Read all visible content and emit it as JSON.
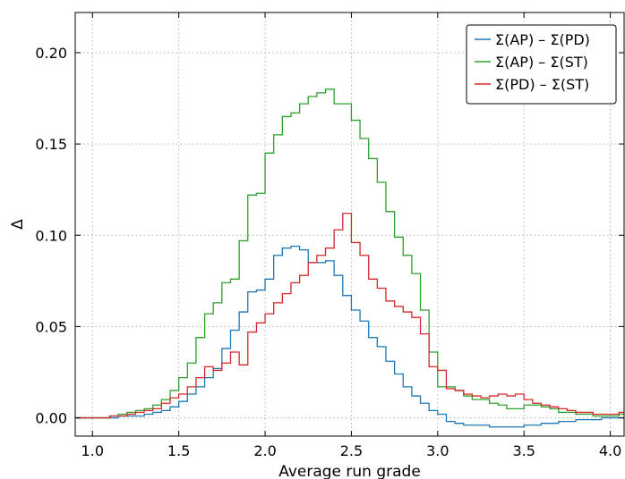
{
  "chart_data": {
    "type": "line",
    "step": true,
    "xlabel": "Average run grade",
    "ylabel": "Δ",
    "xlim": [
      0.9,
      4.08
    ],
    "ylim": [
      -0.01,
      0.222
    ],
    "xticks": [
      1.0,
      1.5,
      2.0,
      2.5,
      3.0,
      3.5,
      4.0
    ],
    "xtick_labels": [
      "1.0",
      "1.5",
      "2.0",
      "2.5",
      "3.0",
      "3.5",
      "4.0"
    ],
    "yticks": [
      0.0,
      0.05,
      0.1,
      0.15,
      0.2
    ],
    "ytick_labels": [
      "0.00",
      "0.05",
      "0.10",
      "0.15",
      "0.20"
    ],
    "grid": true,
    "legend_position": "top-right",
    "bin_width": 0.05,
    "bin_starts": [
      0.9,
      0.95,
      1.0,
      1.05,
      1.1,
      1.15,
      1.2,
      1.25,
      1.3,
      1.35,
      1.4,
      1.45,
      1.5,
      1.55,
      1.6,
      1.65,
      1.7,
      1.75,
      1.8,
      1.85,
      1.9,
      1.95,
      2.0,
      2.05,
      2.1,
      2.15,
      2.2,
      2.25,
      2.3,
      2.35,
      2.4,
      2.45,
      2.5,
      2.55,
      2.6,
      2.65,
      2.7,
      2.75,
      2.8,
      2.85,
      2.9,
      2.95,
      3.0,
      3.05,
      3.1,
      3.15,
      3.2,
      3.25,
      3.3,
      3.35,
      3.4,
      3.45,
      3.5,
      3.55,
      3.6,
      3.65,
      3.7,
      3.75,
      3.8,
      3.85,
      3.9,
      3.95,
      4.0,
      4.05
    ],
    "series": [
      {
        "name": "Σ(AP) – Σ(PD)",
        "color": "#1f77b4",
        "values": [
          0.0,
          0.0,
          0.0,
          0.0,
          0.0,
          0.001,
          0.001,
          0.001,
          0.002,
          0.003,
          0.004,
          0.006,
          0.009,
          0.013,
          0.017,
          0.022,
          0.027,
          0.038,
          0.048,
          0.058,
          0.069,
          0.07,
          0.076,
          0.089,
          0.093,
          0.094,
          0.092,
          0.085,
          0.085,
          0.086,
          0.078,
          0.067,
          0.059,
          0.053,
          0.044,
          0.039,
          0.031,
          0.024,
          0.017,
          0.012,
          0.008,
          0.004,
          0.002,
          -0.002,
          -0.003,
          -0.004,
          -0.004,
          -0.004,
          -0.005,
          -0.005,
          -0.005,
          -0.005,
          -0.004,
          -0.004,
          -0.003,
          -0.003,
          -0.002,
          -0.002,
          -0.001,
          -0.001,
          -0.001,
          0.0,
          0.0,
          0.0
        ]
      },
      {
        "name": "Σ(AP) – Σ(ST)",
        "color": "#2ca02c",
        "values": [
          0.0,
          0.0,
          0.0,
          0.0,
          0.001,
          0.002,
          0.003,
          0.004,
          0.005,
          0.007,
          0.01,
          0.015,
          0.022,
          0.03,
          0.044,
          0.057,
          0.063,
          0.074,
          0.076,
          0.097,
          0.122,
          0.123,
          0.145,
          0.155,
          0.165,
          0.167,
          0.172,
          0.176,
          0.178,
          0.18,
          0.172,
          0.172,
          0.163,
          0.153,
          0.142,
          0.129,
          0.113,
          0.099,
          0.089,
          0.079,
          0.059,
          0.036,
          0.017,
          0.017,
          0.015,
          0.012,
          0.01,
          0.01,
          0.008,
          0.007,
          0.005,
          0.005,
          0.007,
          0.007,
          0.006,
          0.005,
          0.003,
          0.003,
          0.002,
          0.002,
          0.001,
          0.001,
          0.001,
          0.002
        ]
      },
      {
        "name": "Σ(PD) – Σ(ST)",
        "color": "#d62728",
        "values": [
          0.0,
          0.0,
          0.0,
          0.0,
          0.001,
          0.001,
          0.002,
          0.003,
          0.004,
          0.005,
          0.008,
          0.011,
          0.013,
          0.017,
          0.022,
          0.028,
          0.026,
          0.03,
          0.036,
          0.029,
          0.047,
          0.052,
          0.057,
          0.063,
          0.068,
          0.074,
          0.078,
          0.085,
          0.089,
          0.093,
          0.103,
          0.112,
          0.096,
          0.089,
          0.076,
          0.071,
          0.064,
          0.061,
          0.058,
          0.055,
          0.046,
          0.028,
          0.026,
          0.016,
          0.015,
          0.013,
          0.012,
          0.011,
          0.012,
          0.013,
          0.012,
          0.013,
          0.01,
          0.008,
          0.007,
          0.006,
          0.005,
          0.004,
          0.003,
          0.003,
          0.002,
          0.002,
          0.002,
          0.003
        ]
      }
    ]
  }
}
